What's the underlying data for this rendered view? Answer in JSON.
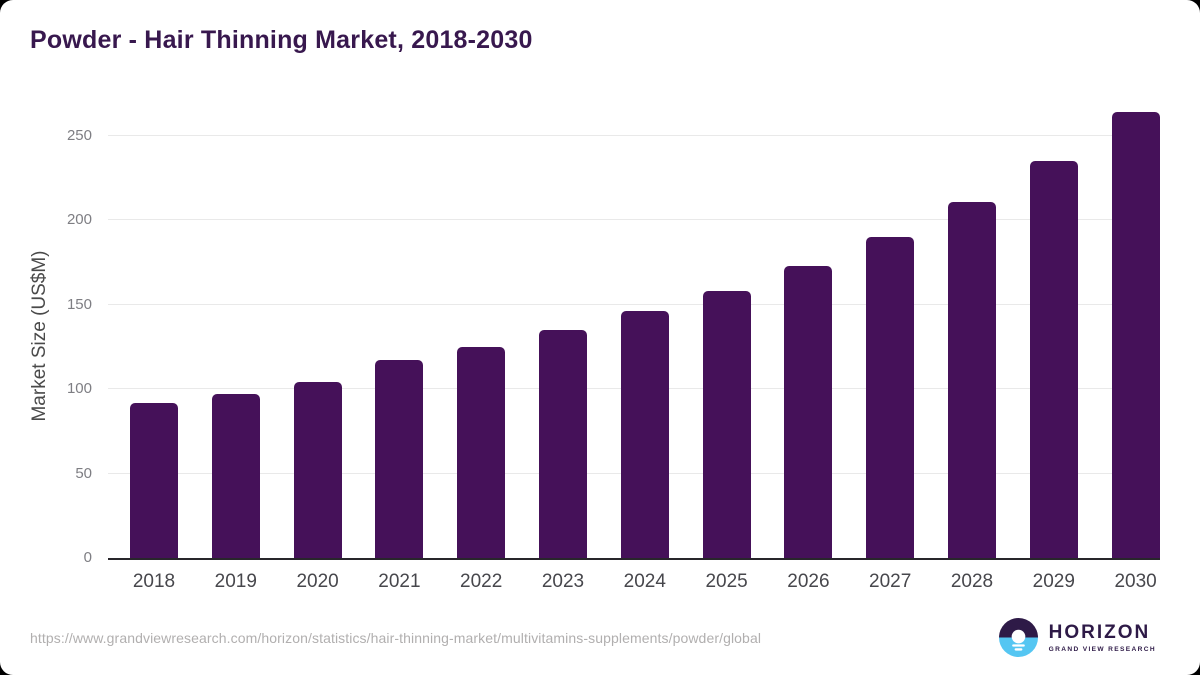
{
  "chart_data": {
    "type": "bar",
    "title": "Powder - Hair Thinning Market, 2018-2030",
    "categories": [
      "2018",
      "2019",
      "2020",
      "2021",
      "2022",
      "2023",
      "2024",
      "2025",
      "2026",
      "2027",
      "2028",
      "2029",
      "2030"
    ],
    "values": [
      92,
      97,
      104,
      117,
      125,
      135,
      146,
      158,
      173,
      190,
      211,
      235,
      264
    ],
    "xlabel": "",
    "ylabel": "Market Size (US$M)",
    "ylim": [
      0,
      277
    ],
    "yticks": [
      0,
      50,
      100,
      150,
      200,
      250
    ],
    "grid": true,
    "legend_position": "none",
    "bar_color": "#451159"
  },
  "footer": {
    "source_url": "https://www.grandviewresearch.com/horizon/statistics/hair-thinning-market/multivitamins-supplements/powder/global",
    "logo": {
      "name": "HORIZON",
      "subtitle": "GRAND VIEW RESEARCH"
    }
  },
  "colors": {
    "title": "#38184e",
    "bar": "#451159",
    "axis_title": "#4a4a4a",
    "ytick": "#7e7e83",
    "xtick": "#47474c",
    "gridline": "#e9e9e9",
    "baseline": "#28262b",
    "url": "#b1afaf",
    "logo_purple": "#2e1a47",
    "logo_blue": "#55c6f2",
    "card_background": "#ffffff"
  }
}
